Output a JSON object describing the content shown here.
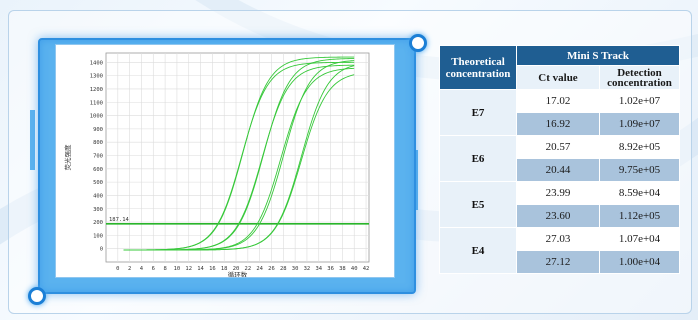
{
  "chart_data": {
    "type": "line",
    "x_ticks": [
      0,
      2,
      4,
      6,
      8,
      10,
      12,
      14,
      16,
      18,
      20,
      22,
      24,
      26,
      28,
      30,
      32,
      34,
      36,
      38,
      40,
      42
    ],
    "y_ticks": [
      0,
      100,
      200,
      300,
      400,
      500,
      600,
      700,
      800,
      900,
      1000,
      1100,
      1200,
      1300,
      1400
    ],
    "xlim": [
      -2,
      42.5
    ],
    "ylim": [
      -100,
      1470
    ],
    "xlabel": "循环数",
    "ylabel": "荧光强度",
    "threshold": {
      "value": 187.14,
      "label": "187.14"
    },
    "grid": true,
    "series": [
      {
        "ct": 17.02,
        "plateau": 1440
      },
      {
        "ct": 16.92,
        "plateau": 1400
      },
      {
        "ct": 20.57,
        "plateau": 1430
      },
      {
        "ct": 20.44,
        "plateau": 1380
      },
      {
        "ct": 23.99,
        "plateau": 1420
      },
      {
        "ct": 23.6,
        "plateau": 1360
      },
      {
        "ct": 27.03,
        "plateau": 1400
      },
      {
        "ct": 27.12,
        "plateau": 1330
      }
    ],
    "colors": {
      "curve": "#37c83a",
      "threshold": "#29b52a",
      "grid": "#dcdcdc"
    }
  },
  "table": {
    "col1_header": "Theoretical concentration",
    "group_header": "Mini S Track",
    "col2_header": "Ct value",
    "col3_header": "Detection concentration",
    "groups": [
      {
        "label": "E7",
        "rows": [
          {
            "ct": "17.02",
            "conc": "1.02e+07"
          },
          {
            "ct": "16.92",
            "conc": "1.09e+07"
          }
        ]
      },
      {
        "label": "E6",
        "rows": [
          {
            "ct": "20.57",
            "conc": "8.92e+05"
          },
          {
            "ct": "20.44",
            "conc": "9.75e+05"
          }
        ]
      },
      {
        "label": "E5",
        "rows": [
          {
            "ct": "23.99",
            "conc": "8.59e+04"
          },
          {
            "ct": "23.60",
            "conc": "1.12e+05"
          }
        ]
      },
      {
        "label": "E4",
        "rows": [
          {
            "ct": "27.03",
            "conc": "1.07e+04"
          },
          {
            "ct": "27.12",
            "conc": "1.00e+04"
          }
        ]
      }
    ]
  }
}
